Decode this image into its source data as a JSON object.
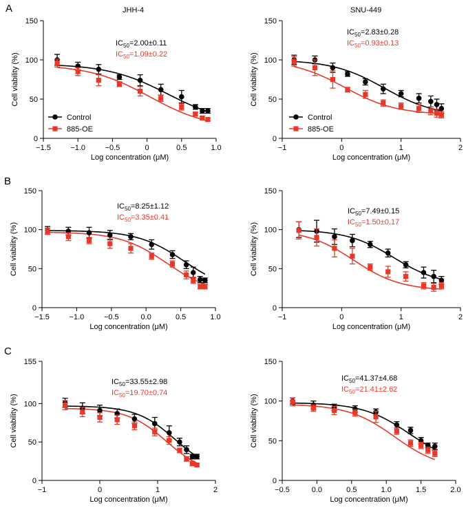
{
  "panel_letters": [
    "A",
    "B",
    "C"
  ],
  "colors": {
    "control": "#000000",
    "oe": "#e8382a"
  },
  "chart_data": [
    {
      "id": "A-left",
      "type": "scatter",
      "title": "JHH-4",
      "xlabel": "Log concentration (μM)",
      "ylabel": "Cell viability (%)",
      "xlim": [
        -1.5,
        1.0
      ],
      "ylim": [
        0,
        150
      ],
      "xticks": [
        -1.5,
        -1.0,
        -0.5,
        0.0,
        0.5,
        1.0
      ],
      "xtick_labels": [
        "−1.5",
        "−1.0",
        "−0.5",
        "0",
        "0.5",
        "1.0"
      ],
      "yticks": [
        0,
        50,
        100,
        150
      ],
      "legend": [
        "Control",
        "885-OE"
      ],
      "ic50_labels": [
        {
          "prefix": "IC",
          "sub": "50",
          "value": "=2.00±0.11"
        },
        {
          "prefix": "IC",
          "sub": "50",
          "value": "=1.09±0.22"
        }
      ],
      "series": [
        {
          "name": "Control",
          "x": [
            -1.3,
            -1.0,
            -0.7,
            -0.4,
            -0.1,
            0.2,
            0.5,
            0.7,
            0.8,
            0.88
          ],
          "y": [
            100,
            92,
            88,
            78,
            74,
            62,
            53,
            40,
            35,
            35
          ],
          "err": [
            7,
            5,
            6,
            3,
            7,
            7,
            8,
            3,
            3,
            3
          ],
          "curve": {
            "top": 95,
            "bottom": 18,
            "logec50": 0.3,
            "hill": 1
          }
        },
        {
          "name": "885-OE",
          "x": [
            -1.3,
            -1.0,
            -0.7,
            -0.4,
            -0.1,
            0.2,
            0.5,
            0.7,
            0.8,
            0.88
          ],
          "y": [
            96,
            85,
            74,
            69,
            60,
            51,
            40,
            31,
            26,
            24
          ],
          "err": [
            5,
            5,
            7,
            3,
            6,
            4,
            4,
            2,
            2,
            2
          ],
          "curve": {
            "top": 94,
            "bottom": 12,
            "logec50": 0.04,
            "hill": 1
          }
        }
      ]
    },
    {
      "id": "A-right",
      "type": "scatter",
      "title": "SNU-449",
      "xlabel": "Log concentration (μM)",
      "ylabel": "Cell viability (%)",
      "xlim": [
        -1,
        2
      ],
      "ylim": [
        0,
        150
      ],
      "xticks": [
        -1,
        0,
        1,
        2
      ],
      "xtick_labels": [
        "−1",
        "0",
        "1",
        "2"
      ],
      "yticks": [
        0,
        50,
        100,
        150
      ],
      "legend": [
        "Control",
        "885-OE"
      ],
      "ic50_labels": [
        {
          "prefix": "IC",
          "sub": "50",
          "value": "=2.83±0.28"
        },
        {
          "prefix": "IC",
          "sub": "50",
          "value": "=0.93±0.13"
        }
      ],
      "series": [
        {
          "name": "Control",
          "x": [
            -0.8,
            -0.45,
            -0.15,
            0.1,
            0.4,
            0.7,
            1.0,
            1.3,
            1.5,
            1.6,
            1.68
          ],
          "y": [
            100,
            100,
            90,
            82,
            72,
            63,
            57,
            51,
            47,
            43,
            38
          ],
          "err": [
            6,
            5,
            6,
            3,
            4,
            6,
            4,
            6,
            7,
            7,
            6
          ],
          "curve": {
            "top": 100,
            "bottom": 28,
            "logec50": 0.72,
            "hill": 1
          }
        },
        {
          "name": "885-OE",
          "x": [
            -0.8,
            -0.45,
            -0.15,
            0.1,
            0.4,
            0.7,
            1.0,
            1.3,
            1.5,
            1.6,
            1.68
          ],
          "y": [
            98,
            90,
            75,
            62,
            56,
            45,
            41,
            38,
            35,
            32,
            30
          ],
          "err": [
            6,
            10,
            11,
            3,
            5,
            4,
            4,
            5,
            5,
            5,
            4
          ],
          "curve": {
            "top": 100,
            "bottom": 30,
            "logec50": 0.05,
            "hill": 1
          }
        }
      ]
    },
    {
      "id": "B-left",
      "type": "scatter",
      "title": "",
      "xlabel": "Log concentration (μM)",
      "ylabel": "Cell viability (%)",
      "xlim": [
        -1.5,
        1.0
      ],
      "ylim": [
        0,
        150
      ],
      "xticks": [
        -1.5,
        -1.0,
        -0.5,
        0.0,
        0.5,
        1.0
      ],
      "xtick_labels": [
        "−1.5",
        "−1.0",
        "−0.5",
        "0.0",
        "0.5",
        "1.0"
      ],
      "yticks": [
        0,
        50,
        100,
        150
      ],
      "legend": [],
      "ic50_labels": [
        {
          "prefix": "IC",
          "sub": "50",
          "value": "=8.25±1.12"
        },
        {
          "prefix": "IC",
          "sub": "50",
          "value": "=3.35±0.41"
        }
      ],
      "series": [
        {
          "name": "Control",
          "x": [
            -1.42,
            -1.12,
            -0.82,
            -0.52,
            -0.22,
            0.08,
            0.38,
            0.58,
            0.68,
            0.78,
            0.85
          ],
          "y": [
            99,
            98,
            96,
            93,
            91,
            81,
            68,
            55,
            45,
            36,
            35
          ],
          "err": [
            5,
            5,
            7,
            6,
            4,
            6,
            5,
            5,
            7,
            4,
            3
          ],
          "curve": {
            "top": 99,
            "bottom": 20,
            "logec50": 0.55,
            "hill": 1.3
          }
        },
        {
          "name": "885-OE",
          "x": [
            -1.42,
            -1.12,
            -0.82,
            -0.52,
            -0.22,
            0.08,
            0.38,
            0.58,
            0.68,
            0.78,
            0.85
          ],
          "y": [
            98,
            91,
            86,
            82,
            76,
            66,
            56,
            42,
            35,
            27,
            27
          ],
          "err": [
            4,
            5,
            4,
            6,
            6,
            4,
            4,
            5,
            4,
            3,
            3
          ],
          "curve": {
            "top": 97,
            "bottom": 17,
            "logec50": 0.3,
            "hill": 1.3
          }
        }
      ]
    },
    {
      "id": "B-right",
      "type": "scatter",
      "title": "",
      "xlabel": "Log concentration (μM)",
      "ylabel": "Cell viability (%)",
      "xlim": [
        -1,
        2
      ],
      "ylim": [
        0,
        150
      ],
      "xticks": [
        -1,
        0,
        1,
        2
      ],
      "xtick_labels": [
        "−1",
        "0",
        "1",
        "2"
      ],
      "yticks": [
        0,
        50,
        100,
        150
      ],
      "legend": [],
      "ic50_labels": [
        {
          "prefix": "IC",
          "sub": "50",
          "value": "=7.49±0.15"
        },
        {
          "prefix": "IC",
          "sub": "50",
          "value": "=1.50±0.17"
        }
      ],
      "series": [
        {
          "name": "Control",
          "x": [
            -0.72,
            -0.42,
            -0.12,
            0.18,
            0.48,
            0.78,
            1.08,
            1.38,
            1.55,
            1.68
          ],
          "y": [
            100,
            98,
            91,
            86,
            81,
            70,
            55,
            45,
            40,
            35
          ],
          "err": [
            10,
            14,
            10,
            8,
            4,
            5,
            4,
            7,
            8,
            5
          ],
          "curve": {
            "top": 100,
            "bottom": 28,
            "logec50": 0.88,
            "hill": 1.1
          }
        },
        {
          "name": "885-OE",
          "x": [
            -0.72,
            -0.42,
            -0.12,
            0.18,
            0.48,
            0.78,
            1.08,
            1.38,
            1.55,
            1.68
          ],
          "y": [
            99,
            90,
            76,
            66,
            52,
            46,
            40,
            28,
            26,
            28
          ],
          "err": [
            11,
            11,
            11,
            10,
            4,
            7,
            6,
            4,
            5,
            4
          ],
          "curve": {
            "top": 100,
            "bottom": 22,
            "logec50": 0.2,
            "hill": 1.1
          }
        }
      ]
    },
    {
      "id": "C-left",
      "type": "scatter",
      "title": "",
      "xlabel": "Log concentration (μM)",
      "ylabel": "Cell viability (%)",
      "xlim": [
        -1,
        2
      ],
      "ylim": [
        0,
        155
      ],
      "xticks": [
        -1,
        0,
        1,
        2
      ],
      "xtick_labels": [
        "−1",
        "0",
        "1",
        "2"
      ],
      "yticks": [
        0,
        50,
        100,
        155
      ],
      "ytick_labels": [
        "0",
        "50",
        "100",
        "155"
      ],
      "legend": [],
      "ic50_labels": [
        {
          "prefix": "IC",
          "sub": "50",
          "value": "=33.55±2.98"
        },
        {
          "prefix": "IC",
          "sub": "50",
          "value": "=19.70±0.74"
        }
      ],
      "series": [
        {
          "name": "Control",
          "x": [
            -0.6,
            -0.3,
            0.0,
            0.3,
            0.6,
            0.95,
            1.2,
            1.38,
            1.5,
            1.6,
            1.68
          ],
          "y": [
            101,
            94,
            91,
            87,
            80,
            74,
            62,
            50,
            40,
            31,
            31
          ],
          "err": [
            6,
            7,
            7,
            6,
            6,
            8,
            9,
            5,
            5,
            3,
            3
          ],
          "curve": {
            "top": 97,
            "bottom": 10,
            "logec50": 1.3,
            "hill": 1.3
          }
        },
        {
          "name": "885-OE",
          "x": [
            -0.6,
            -0.3,
            0.0,
            0.3,
            0.6,
            0.95,
            1.2,
            1.38,
            1.5,
            1.6,
            1.68
          ],
          "y": [
            98,
            89,
            82,
            79,
            71,
            63,
            52,
            39,
            28,
            22,
            20
          ],
          "err": [
            6,
            6,
            6,
            6,
            5,
            5,
            5,
            3,
            3,
            3,
            2
          ],
          "curve": {
            "top": 94,
            "bottom": 8,
            "logec50": 1.15,
            "hill": 1.3
          }
        }
      ]
    },
    {
      "id": "C-right",
      "type": "scatter",
      "title": "",
      "xlabel": "Log concentration (μM)",
      "ylabel": "Cell viability (%)",
      "xlim": [
        -0.5,
        2.0
      ],
      "ylim": [
        0,
        150
      ],
      "xticks": [
        -0.5,
        0.0,
        0.5,
        1.0,
        1.5,
        2.0
      ],
      "xtick_labels": [
        "−0.5",
        "0.0",
        "0.5",
        "1.0",
        "1.5",
        "2.0"
      ],
      "yticks": [
        0,
        50,
        100,
        150
      ],
      "legend": [],
      "ic50_labels": [
        {
          "prefix": "IC",
          "sub": "50",
          "value": "=41.37±4.68"
        },
        {
          "prefix": "IC",
          "sub": "50",
          "value": "=21.41±2.62"
        }
      ],
      "series": [
        {
          "name": "Control",
          "x": [
            -0.35,
            -0.05,
            0.25,
            0.55,
            0.85,
            1.15,
            1.35,
            1.5,
            1.6,
            1.7
          ],
          "y": [
            100,
            95,
            92,
            90,
            86,
            70,
            63,
            50,
            44,
            43
          ],
          "err": [
            4,
            5,
            4,
            4,
            4,
            4,
            4,
            4,
            3,
            4
          ],
          "curve": {
            "top": 98,
            "bottom": 20,
            "logec50": 1.33,
            "hill": 1.3
          }
        },
        {
          "name": "885-OE",
          "x": [
            -0.35,
            -0.05,
            0.25,
            0.55,
            0.85,
            1.15,
            1.35,
            1.5,
            1.6,
            1.7
          ],
          "y": [
            99,
            91,
            88,
            85,
            80,
            62,
            47,
            44,
            38,
            34
          ],
          "err": [
            5,
            4,
            5,
            4,
            7,
            4,
            4,
            4,
            4,
            4
          ],
          "curve": {
            "top": 96,
            "bottom": 14,
            "logec50": 1.12,
            "hill": 1.3
          }
        }
      ]
    }
  ]
}
